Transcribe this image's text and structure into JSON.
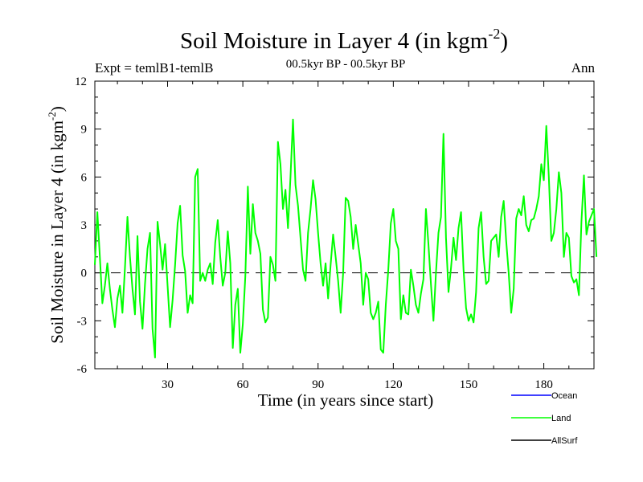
{
  "chart_data": {
    "type": "line",
    "title": "Soil Moisture in Layer 4 (in kgm",
    "title_sup": "-2",
    "title_close": ")",
    "expt_label": "Expt = temlB1-temlB",
    "period_label": "00.5kyr BP - 00.5kyr BP",
    "season_label": "Ann",
    "xlabel": "Time (in years since start)",
    "ylabel": "Soil Moisture in Layer 4 (in kgm",
    "ylabel_sup": "-2",
    "ylabel_close": ")",
    "xlim": [
      1,
      200
    ],
    "ylim": [
      -6,
      12
    ],
    "x_ticks": [
      30,
      60,
      90,
      120,
      150,
      180
    ],
    "x_tick_labels": [
      "30",
      "60",
      "90",
      "120",
      "150",
      "180"
    ],
    "y_ticks": [
      -6,
      -3,
      0,
      3,
      6,
      9,
      12
    ],
    "y_tick_labels": [
      "-6",
      "-3",
      "0",
      "3",
      "6",
      "9",
      "12"
    ],
    "zero_line": 0,
    "legend": [
      {
        "name": "Ocean",
        "color": "#0000ff"
      },
      {
        "name": "Land",
        "color": "#00ff00"
      },
      {
        "name": "AllSurf",
        "color": "#000000"
      }
    ],
    "series": [
      {
        "name": "Land",
        "color": "#00ff00",
        "x_start": 1,
        "values": [
          0.5,
          3.8,
          1.0,
          -1.9,
          -0.8,
          0.6,
          -1.0,
          -2.3,
          -3.4,
          -1.6,
          -0.8,
          -2.5,
          0.3,
          3.5,
          1.0,
          -1.0,
          -2.6,
          2.3,
          -1.8,
          -3.5,
          -0.7,
          1.5,
          2.5,
          -3.5,
          -5.3,
          3.2,
          1.8,
          0.2,
          1.8,
          -0.8,
          -3.4,
          -1.7,
          0.5,
          3.1,
          4.2,
          1.1,
          0.1,
          -2.5,
          -1.4,
          -1.9,
          6.0,
          6.5,
          -0.5,
          0.0,
          -0.5,
          0.2,
          0.6,
          -0.7,
          1.9,
          3.3,
          1.0,
          -0.8,
          0.0,
          2.6,
          0.6,
          -4.7,
          -2.0,
          -1.0,
          -5.0,
          -3.2,
          -0.2,
          5.4,
          1.2,
          4.3,
          2.5,
          2.0,
          1.2,
          -2.3,
          -3.1,
          -2.8,
          1.0,
          0.5,
          -0.5,
          8.2,
          6.8,
          4.0,
          5.2,
          2.8,
          6.0,
          9.6,
          5.5,
          4.2,
          2.2,
          0.2,
          -0.5,
          2.5,
          4.0,
          5.8,
          4.6,
          2.5,
          0.6,
          -0.8,
          0.6,
          -1.6,
          0.5,
          2.4,
          1.0,
          -0.5,
          -2.5,
          0.0,
          4.7,
          4.5,
          3.5,
          1.5,
          3.0,
          1.8,
          0.6,
          -2.0,
          0.0,
          -0.4,
          -2.5,
          -2.9,
          -2.5,
          -1.8,
          -4.8,
          -5.0,
          -2.0,
          0.2,
          3.1,
          4.0,
          2.0,
          1.5,
          -2.9,
          -1.4,
          -2.5,
          -2.6,
          0.2,
          -0.8,
          -2.0,
          -2.5,
          -1.3,
          -0.4,
          4.0,
          1.8,
          -0.7,
          -3.0,
          0.0,
          2.5,
          3.5,
          8.7,
          2.2,
          -1.2,
          0.3,
          2.2,
          0.8,
          2.8,
          3.8,
          0.2,
          -2.2,
          -3.0,
          -2.6,
          -3.1,
          -1.2,
          2.8,
          3.8,
          1.0,
          -0.7,
          -0.5,
          2.0,
          2.2,
          2.4,
          1.0,
          3.5,
          4.5,
          2.0,
          0.0,
          -2.5,
          -1.0,
          3.4,
          4.0,
          3.6,
          4.8,
          3.0,
          2.6,
          3.3,
          3.4,
          4.0,
          4.8,
          6.8,
          5.8,
          9.2,
          6.0,
          2.0,
          2.5,
          4.0,
          6.3,
          5.0,
          1.0,
          2.5,
          2.2,
          -0.2,
          -0.6,
          -0.4,
          -1.4,
          3.2,
          6.1,
          2.4,
          3.2,
          3.6,
          4.0,
          1.0
        ]
      }
    ]
  }
}
